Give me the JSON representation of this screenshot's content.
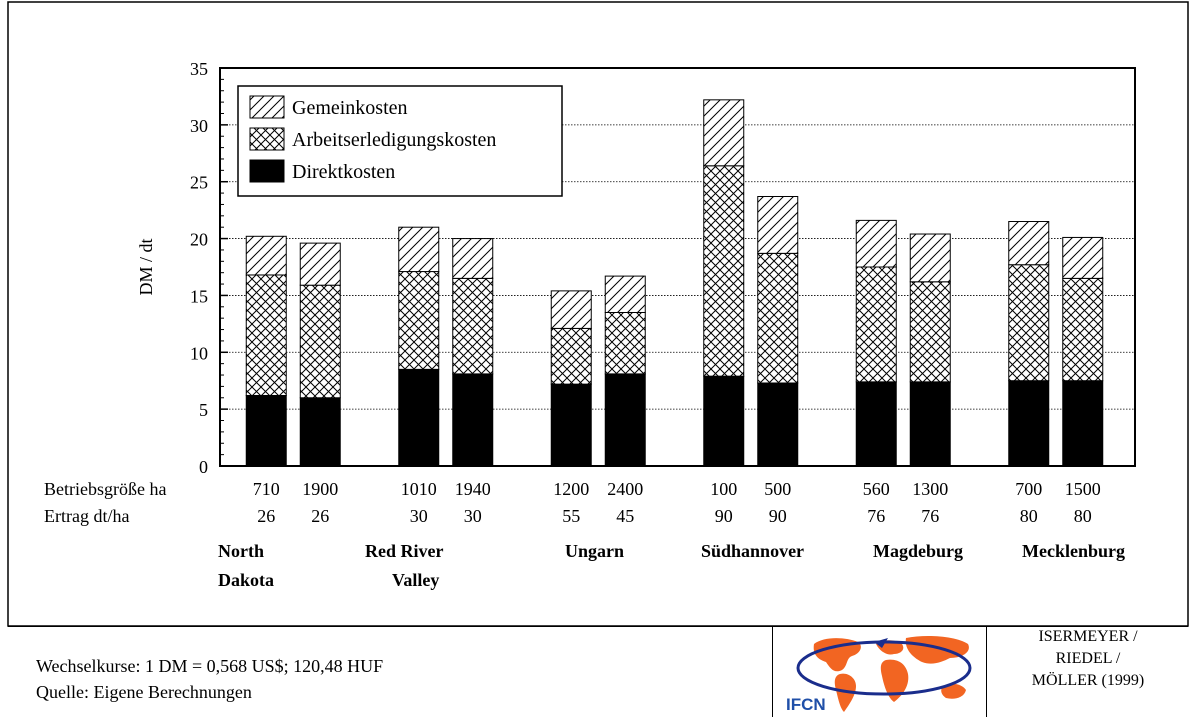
{
  "chart_data": {
    "type": "bar",
    "stacked": true,
    "ylabel": "DM / dt",
    "ylim": [
      0,
      35
    ],
    "yticks": [
      0,
      5,
      10,
      15,
      20,
      25,
      30,
      35
    ],
    "grid": true,
    "legend_placement": "top-left",
    "categories": [
      "710",
      "1900",
      "1010",
      "1940",
      "1200",
      "2400",
      "100",
      "500",
      "560",
      "1300",
      "700",
      "1500"
    ],
    "row_labels": [
      "Betriebsgröße ha",
      "Ertrag dt/ha"
    ],
    "farm_size_ha": [
      "710",
      "1900",
      "1010",
      "1940",
      "1200",
      "2400",
      "100",
      "500",
      "560",
      "1300",
      "700",
      "1500"
    ],
    "yield_dt_ha": [
      "26",
      "26",
      "30",
      "30",
      "55",
      "45",
      "90",
      "90",
      "76",
      "76",
      "80",
      "80"
    ],
    "regions": [
      {
        "line1": "North",
        "line2": "Dakota"
      },
      {
        "line1": "Red River",
        "line2": "Valley"
      },
      {
        "line1": "Ungarn",
        "line2": ""
      },
      {
        "line1": "Südhannover",
        "line2": ""
      },
      {
        "line1": "Magdeburg",
        "line2": ""
      },
      {
        "line1": "Mecklenburg",
        "line2": ""
      }
    ],
    "series": [
      {
        "name": "Direktkosten",
        "values": [
          6.2,
          6.0,
          8.5,
          8.1,
          7.2,
          8.1,
          7.9,
          7.3,
          7.4,
          7.4,
          7.5,
          7.5
        ]
      },
      {
        "name": "Arbeitserledigungskosten",
        "values": [
          10.6,
          9.9,
          8.6,
          8.4,
          4.9,
          5.4,
          18.5,
          11.4,
          10.1,
          8.8,
          10.2,
          9.0
        ]
      },
      {
        "name": "Gemeinkosten",
        "values": [
          3.4,
          3.7,
          3.9,
          3.5,
          3.3,
          3.2,
          5.8,
          5.0,
          4.1,
          4.2,
          3.8,
          3.6
        ]
      }
    ],
    "legend": [
      "Gemeinkosten",
      "Arbeitserledigungskosten",
      "Direktkosten"
    ]
  },
  "footer": {
    "exchange": "Wechselkurse: 1 DM = 0,568 US$; 120,48 HUF",
    "source": "Quelle: Eigene Berechnungen",
    "logo_text": "IFCN",
    "authors": [
      "ISERMEYER /",
      "RIEDEL /",
      "MÖLLER (1999)"
    ]
  },
  "colors": {
    "logo_orange": "#f26522",
    "logo_blue": "#1a2d8c",
    "logo_text": "#1f4fa8"
  }
}
